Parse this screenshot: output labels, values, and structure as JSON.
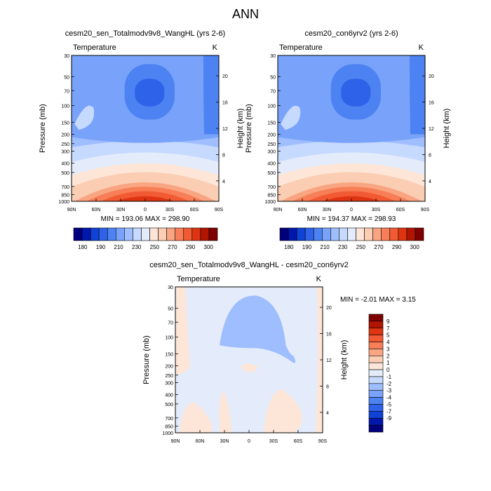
{
  "figure_title": "ANN",
  "chart_data": [
    {
      "type": "heatmap",
      "title": "cesm20_sen_Totalmodv9v8_WangHL (yrs 2-6)",
      "field_label": "Temperature",
      "units": "K",
      "ylabel": "Pressure (mb)",
      "ylabel_right": "Height (km)",
      "x_ticks": [
        "90N",
        "60N",
        "30N",
        "0",
        "30S",
        "60S",
        "90S"
      ],
      "y_ticks": [
        "30",
        "50",
        "70",
        "100",
        "150",
        "200",
        "250",
        "300",
        "400",
        "500",
        "700",
        "850",
        "1000"
      ],
      "y_ticks_right": [
        "20",
        "16",
        "12",
        "8",
        "4"
      ],
      "ylim": [
        1000,
        30
      ],
      "stats_text": "MIN = 193.06   MAX = 298.90",
      "min": 193.06,
      "max": 298.9
    },
    {
      "type": "heatmap",
      "title": "cesm20_con6yrv2 (yrs 2-6)",
      "field_label": "Temperature",
      "units": "K",
      "ylabel": "Pressure (mb)",
      "ylabel_right": "Height (km)",
      "x_ticks": [
        "90N",
        "60N",
        "30N",
        "0",
        "30S",
        "60S",
        "90S"
      ],
      "y_ticks": [
        "30",
        "50",
        "70",
        "100",
        "150",
        "200",
        "250",
        "300",
        "400",
        "500",
        "700",
        "850",
        "1000"
      ],
      "y_ticks_right": [
        "20",
        "16",
        "12",
        "8",
        "4"
      ],
      "ylim": [
        1000,
        30
      ],
      "stats_text": "MIN = 194.37   MAX = 298.93",
      "min": 194.37,
      "max": 298.93
    },
    {
      "type": "heatmap",
      "title": "cesm20_sen_Totalmodv9v8_WangHL - cesm20_con6yrv2",
      "field_label": "Temperature",
      "units": "K",
      "ylabel": "Pressure (mb)",
      "ylabel_right": "Height (km)",
      "x_ticks": [
        "90N",
        "60N",
        "30N",
        "0",
        "30S",
        "60S",
        "90S"
      ],
      "y_ticks": [
        "30",
        "50",
        "70",
        "100",
        "150",
        "200",
        "250",
        "300",
        "400",
        "500",
        "700",
        "850",
        "1000"
      ],
      "y_ticks_right": [
        "20",
        "16",
        "12",
        "8",
        "4"
      ],
      "ylim": [
        1000,
        30
      ],
      "stats_text": "MIN =  -2.01   MAX =   3.15",
      "min": -2.01,
      "max": 3.15
    }
  ],
  "colorbar_abs": {
    "labels": [
      "180",
      "190",
      "210",
      "230",
      "250",
      "270",
      "290",
      "300"
    ],
    "colors": [
      "#00007f",
      "#0017ae",
      "#0f43d6",
      "#2e62e8",
      "#4c82f2",
      "#79a3fb",
      "#9fbeff",
      "#c6d9fe",
      "#e4ecfb",
      "#fde6d7",
      "#fbcdb3",
      "#f9a582",
      "#f77e56",
      "#f25a33",
      "#de3411",
      "#b11500",
      "#7f0000"
    ]
  },
  "colorbar_diff": {
    "labels": [
      "9",
      "7",
      "5",
      "4",
      "3",
      "2",
      "1",
      "0",
      "-1",
      "-2",
      "-3",
      "-4",
      "-5",
      "-7",
      "-9"
    ],
    "colors": [
      "#7f0000",
      "#b11500",
      "#de3411",
      "#f25a33",
      "#f77e56",
      "#f9a582",
      "#fbcdb3",
      "#fde6d7",
      "#e4ecfb",
      "#c6d9fe",
      "#9fbeff",
      "#79a3fb",
      "#4c82f2",
      "#2e62e8",
      "#0f43d6",
      "#0017ae",
      "#00007f"
    ]
  }
}
